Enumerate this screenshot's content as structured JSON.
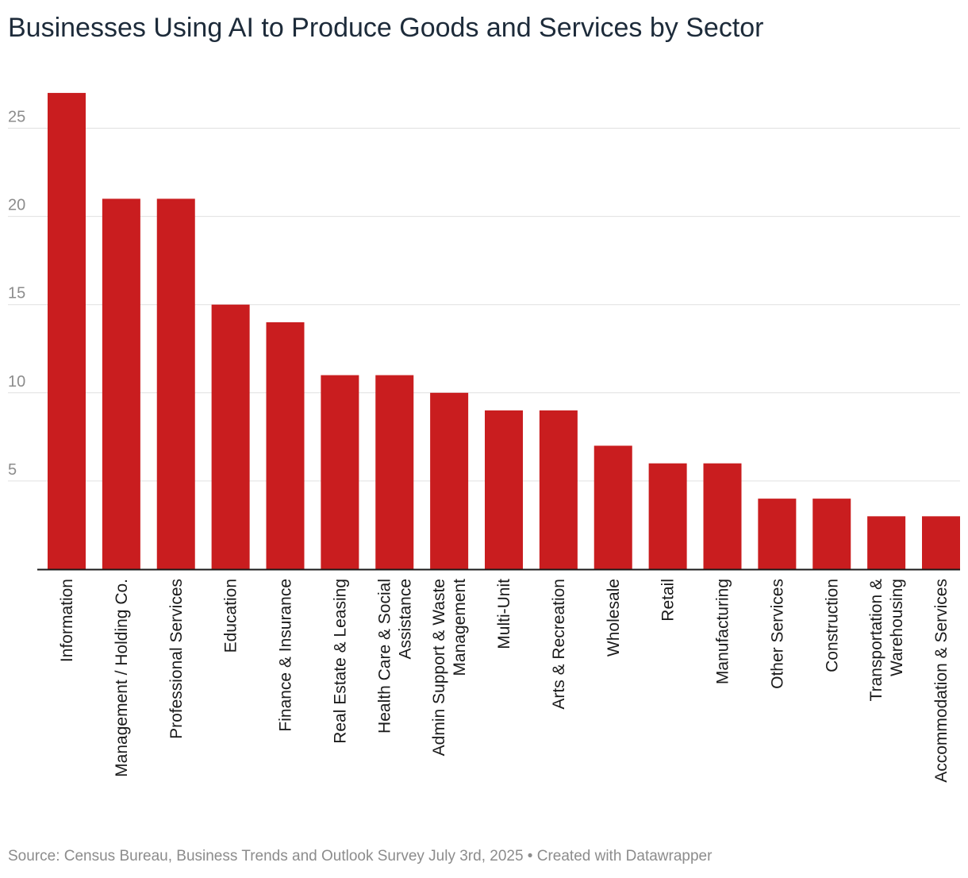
{
  "chart_data": {
    "type": "bar",
    "title": "Businesses Using AI to Produce Goods and Services by Sector",
    "xlabel": "",
    "ylabel": "",
    "categories": [
      "Information",
      "Management / Holding Co.",
      "Professional Services",
      "Education",
      "Finance & Insurance",
      "Real Estate & Leasing",
      "Health Care & Social Assistance",
      "Admin Support & Waste Management",
      "Multi-Unit",
      "Arts & Recreation",
      "Wholesale",
      "Retail",
      "Manufacturing",
      "Other Services",
      "Construction",
      "Transportation & Warehousing",
      "Accommodation & Services"
    ],
    "category_lines": [
      [
        "Information"
      ],
      [
        "Management / Holding Co."
      ],
      [
        "Professional Services"
      ],
      [
        "Education"
      ],
      [
        "Finance & Insurance"
      ],
      [
        "Real Estate & Leasing"
      ],
      [
        "Health Care & Social",
        "Assistance"
      ],
      [
        "Admin Support & Waste",
        "Management"
      ],
      [
        "Multi-Unit"
      ],
      [
        "Arts & Recreation"
      ],
      [
        "Wholesale"
      ],
      [
        "Retail"
      ],
      [
        "Manufacturing"
      ],
      [
        "Other Services"
      ],
      [
        "Construction"
      ],
      [
        "Transportation &",
        "Warehousing"
      ],
      [
        "Accommodation & Services"
      ]
    ],
    "values": [
      27,
      21,
      21,
      15,
      14,
      11,
      11,
      10,
      9,
      9,
      7,
      6,
      6,
      4,
      4,
      3,
      3
    ],
    "ylim": [
      0,
      28
    ],
    "yticks": [
      5,
      10,
      15,
      20,
      25
    ],
    "grid": true,
    "legend": "none",
    "bar_color": "#c91d1f"
  },
  "footer": {
    "source": "Source: Census Bureau, Business Trends and Outlook Survey July 3rd, 2025 • Created with Datawrapper"
  }
}
